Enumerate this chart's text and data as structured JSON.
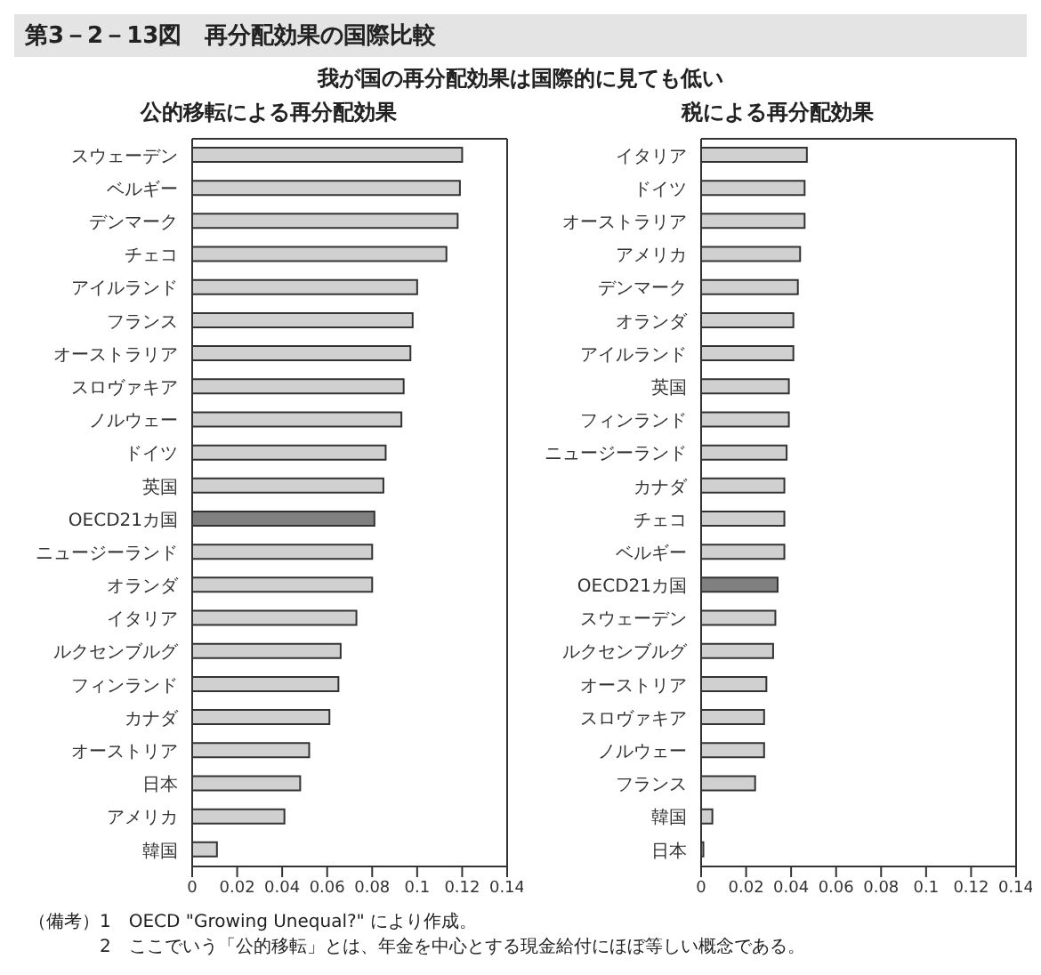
{
  "chart_data": [
    {
      "type": "bar",
      "orientation": "horizontal",
      "title": "公的移転による再分配効果",
      "annotations": [
        "第3－2－13図　再分配効果の国際比較",
        "我が国の再分配効果は国際的に見ても低い"
      ],
      "categories": [
        "スウェーデン",
        "ベルギー",
        "デンマーク",
        "チェコ",
        "アイルランド",
        "フランス",
        "オーストラリア",
        "スロヴァキア",
        "ノルウェー",
        "ドイツ",
        "英国",
        "OECD21カ国",
        "ニュージーランド",
        "オランダ",
        "イタリア",
        "ルクセンブルグ",
        "フィンランド",
        "カナダ",
        "オーストリア",
        "日本",
        "アメリカ",
        "韓国"
      ],
      "values": [
        0.12,
        0.119,
        0.118,
        0.113,
        0.1,
        0.098,
        0.097,
        0.094,
        0.093,
        0.086,
        0.085,
        0.081,
        0.08,
        0.08,
        0.073,
        0.066,
        0.065,
        0.061,
        0.052,
        0.048,
        0.041,
        0.011
      ],
      "colors": [
        "#d0d0d0",
        "#d0d0d0",
        "#d0d0d0",
        "#d0d0d0",
        "#d0d0d0",
        "#d0d0d0",
        "#d0d0d0",
        "#d0d0d0",
        "#d0d0d0",
        "#d0d0d0",
        "#d0d0d0",
        "#808080",
        "#d0d0d0",
        "#d0d0d0",
        "#d0d0d0",
        "#d0d0d0",
        "#d0d0d0",
        "#d0d0d0",
        "#d0d0d0",
        "#d0d0d0",
        "#d0d0d0",
        "#d0d0d0"
      ],
      "xlim": [
        0,
        0.14
      ],
      "xticks": [
        0,
        0.02,
        0.04,
        0.06,
        0.08,
        0.1,
        0.12,
        0.14
      ],
      "grid": false,
      "legend": false
    },
    {
      "type": "bar",
      "orientation": "horizontal",
      "title": "税による再分配効果",
      "annotations": [
        "（備考）1　OECD \"Growing Unequal?\" により作成。",
        "2　ここでいう「公的移転」とは、年金を中心とする現金給付にほぼ等しい概念である。"
      ],
      "categories": [
        "イタリア",
        "ドイツ",
        "オーストラリア",
        "アメリカ",
        "デンマーク",
        "オランダ",
        "アイルランド",
        "英国",
        "フィンランド",
        "ニュージーランド",
        "カナダ",
        "チェコ",
        "ベルギー",
        "OECD21カ国",
        "スウェーデン",
        "ルクセンブルグ",
        "オーストリア",
        "スロヴァキア",
        "ノルウェー",
        "フランス",
        "韓国",
        "日本"
      ],
      "values": [
        0.047,
        0.046,
        0.046,
        0.044,
        0.043,
        0.041,
        0.041,
        0.039,
        0.039,
        0.038,
        0.037,
        0.037,
        0.037,
        0.034,
        0.033,
        0.032,
        0.029,
        0.028,
        0.028,
        0.024,
        0.005,
        0.001
      ],
      "colors": [
        "#d0d0d0",
        "#d0d0d0",
        "#d0d0d0",
        "#d0d0d0",
        "#d0d0d0",
        "#d0d0d0",
        "#d0d0d0",
        "#d0d0d0",
        "#d0d0d0",
        "#d0d0d0",
        "#d0d0d0",
        "#d0d0d0",
        "#d0d0d0",
        "#808080",
        "#d0d0d0",
        "#d0d0d0",
        "#d0d0d0",
        "#d0d0d0",
        "#d0d0d0",
        "#d0d0d0",
        "#d0d0d0",
        "#d0d0d0"
      ],
      "xlim": [
        0,
        0.14
      ],
      "xticks": [
        0,
        0.02,
        0.04,
        0.06,
        0.08,
        0.1,
        0.12,
        0.14
      ],
      "grid": false,
      "legend": false
    }
  ]
}
